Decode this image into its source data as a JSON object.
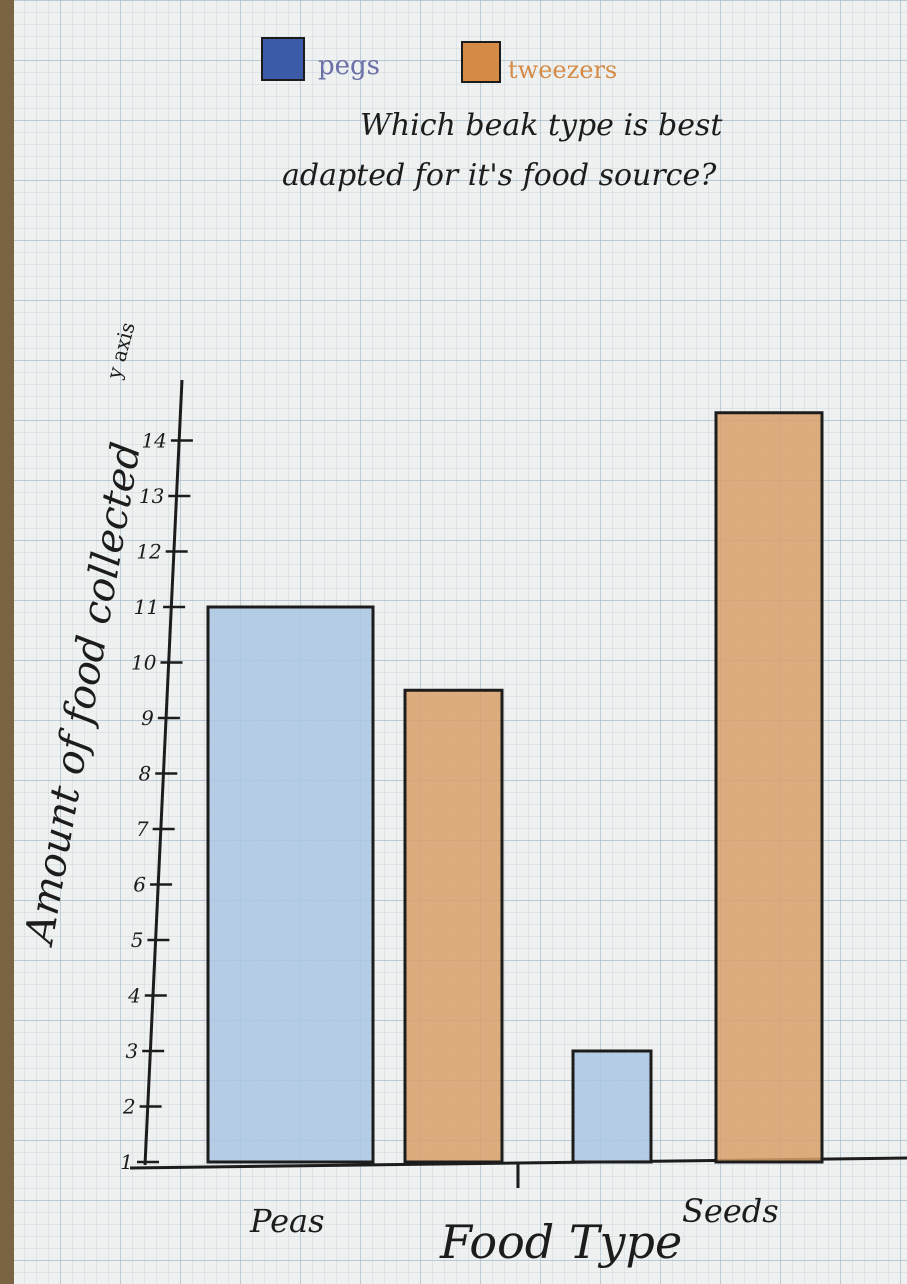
{
  "chart_data": {
    "type": "bar",
    "title": "Which beak type is best adapted for it's food source?",
    "title_lines": [
      "Which beak type is best",
      "adapted for it's food source?"
    ],
    "xlabel": "Food Type",
    "ylabel": "Amount of food collected",
    "ylabel_note": "y axis",
    "categories": [
      "Peas",
      "Seeds"
    ],
    "series": [
      {
        "name": "pegs",
        "color": "#a9c7e3",
        "values": [
          11,
          3
        ]
      },
      {
        "name": "tweezers",
        "color": "#d9a06a",
        "values": [
          9.5,
          14.5
        ]
      }
    ],
    "yticks": [
      1,
      2,
      3,
      4,
      5,
      6,
      7,
      8,
      9,
      10,
      11,
      12,
      13,
      14
    ],
    "legend_position": "top",
    "grid": true
  },
  "colors": {
    "paper": "#eef1f0",
    "grid_minor": "#c9d6df",
    "grid_major": "#a9bccb",
    "legend_pegs": "#3b5aa8",
    "legend_tweezers": "#d58a45",
    "ink": "#1c1c1c"
  }
}
